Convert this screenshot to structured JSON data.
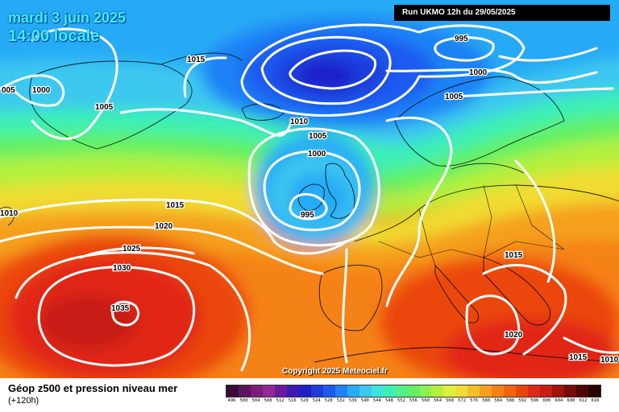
{
  "header": {
    "date_line": "mardi 3 juin 2025",
    "time_line": "14:00 locale",
    "run_info": "Run UKMO 12h du 29/05/2025"
  },
  "copyright": "Copyright 2025 Meteociel.fr",
  "footer": {
    "title": "Géop z500 et pression niveau mer",
    "subtitle": "(+120h)"
  },
  "isobar_labels": [
    "005",
    "1000",
    "1005",
    "1010",
    "1015",
    "1020",
    "1025",
    "1030",
    "1035",
    "1015",
    "995",
    "1000",
    "1005",
    "1010",
    "1005",
    "1000",
    "995",
    "1015",
    "1020",
    "1015",
    "1010"
  ],
  "pressure_centers": {
    "north_low": "995",
    "ireland_low": "995",
    "atlantic_high": "1035",
    "mediterranean": "1020"
  },
  "legend": {
    "values": [
      "496",
      "500",
      "504",
      "508",
      "512",
      "516",
      "520",
      "524",
      "528",
      "532",
      "536",
      "540",
      "544",
      "548",
      "552",
      "556",
      "560",
      "564",
      "568",
      "572",
      "576",
      "580",
      "584",
      "588",
      "592",
      "596",
      "600",
      "604",
      "608",
      "612",
      "616"
    ],
    "colors": [
      "#3a0a3a",
      "#5a145a",
      "#7a1e7a",
      "#962896",
      "#6a1aa0",
      "#3a1ab4",
      "#1e1ec8",
      "#1e3cdc",
      "#1e5af0",
      "#1e82f5",
      "#28aaf5",
      "#3cc8f0",
      "#3ce6dc",
      "#3cf0b4",
      "#50f08c",
      "#64f064",
      "#8cf050",
      "#b4f03c",
      "#dcf03c",
      "#f0dc32",
      "#f5be28",
      "#f5a01e",
      "#f58214",
      "#f0640a",
      "#eb460a",
      "#e12814",
      "#c81e14",
      "#a0140a",
      "#780a0a",
      "#500505",
      "#280000"
    ]
  },
  "colors": {
    "title_cyan": "#3cf0ff",
    "isobar_white": "#ffffff",
    "high_core_red": "#dc1e14",
    "low_core_blue": "#1e28c8"
  }
}
